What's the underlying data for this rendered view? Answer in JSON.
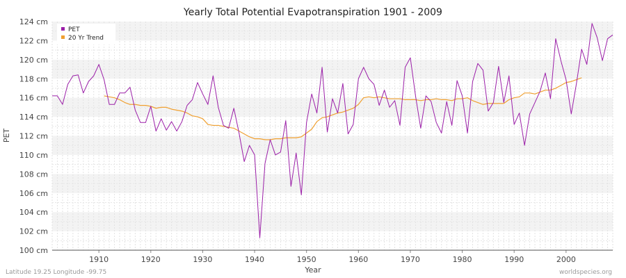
{
  "chart_data": {
    "type": "line",
    "title": "Yearly Total Potential Evapotranspiration 1901 - 2009",
    "xlabel": "Year",
    "ylabel": "PET",
    "xlim": [
      1901,
      2009
    ],
    "ylim": [
      100,
      124
    ],
    "x_ticks": [
      1910,
      1920,
      1930,
      1940,
      1950,
      1960,
      1970,
      1980,
      1990,
      2000
    ],
    "x_tick_labels": [
      "1910",
      "1920",
      "1930",
      "1940",
      "1950",
      "1960",
      "1970",
      "1980",
      "1990",
      "2000"
    ],
    "y_ticks": [
      100,
      102,
      104,
      106,
      108,
      110,
      112,
      114,
      116,
      118,
      120,
      122,
      124
    ],
    "y_tick_labels": [
      "100 cm",
      "102 cm",
      "104 cm",
      "106 cm",
      "108 cm",
      "110 cm",
      "112 cm",
      "114 cm",
      "116 cm",
      "118 cm",
      "120 cm",
      "122 cm",
      "124 cm"
    ],
    "grid": true,
    "legend_position": "top-left",
    "series": [
      {
        "name": "PET",
        "color": "#9b1fa8",
        "x_start": 1901,
        "values": [
          116.2,
          116.2,
          115.3,
          117.4,
          118.3,
          118.4,
          116.5,
          117.7,
          118.3,
          119.5,
          117.9,
          115.3,
          115.3,
          116.5,
          116.5,
          117.1,
          114.7,
          113.4,
          113.4,
          115.1,
          112.5,
          113.8,
          112.6,
          113.5,
          112.5,
          113.5,
          115.2,
          115.8,
          117.6,
          116.4,
          115.3,
          118.3,
          115.0,
          113.1,
          112.8,
          114.9,
          112.3,
          109.3,
          111.0,
          110.0,
          101.3,
          109.1,
          111.6,
          110.0,
          110.3,
          113.6,
          106.7,
          110.2,
          105.8,
          113.4,
          116.4,
          114.4,
          119.2,
          112.4,
          115.9,
          114.4,
          117.5,
          112.2,
          113.2,
          118.0,
          119.2,
          118.0,
          117.4,
          115.2,
          116.8,
          115.0,
          115.7,
          113.1,
          119.2,
          120.2,
          116.2,
          112.8,
          116.2,
          115.6,
          113.4,
          112.3,
          115.6,
          113.1,
          117.8,
          116.2,
          112.3,
          117.7,
          119.6,
          118.9,
          114.6,
          115.5,
          119.3,
          115.5,
          118.3,
          113.2,
          114.4,
          111.0,
          114.3,
          115.5,
          116.7,
          118.6,
          115.9,
          122.2,
          119.9,
          117.9,
          114.3,
          117.5,
          121.1,
          119.5,
          123.8,
          122.3,
          119.9,
          122.2,
          122.6
        ]
      },
      {
        "name": "20 Yr Trend",
        "color": "#f0a030",
        "x_start": 1911,
        "values": [
          116.2,
          116.1,
          116.0,
          115.8,
          115.5,
          115.3,
          115.3,
          115.2,
          115.2,
          115.1,
          114.9,
          115.0,
          115.0,
          114.8,
          114.7,
          114.6,
          114.4,
          114.1,
          114.0,
          113.8,
          113.2,
          113.1,
          113.1,
          113.0,
          112.9,
          112.8,
          112.5,
          112.2,
          111.9,
          111.7,
          111.7,
          111.6,
          111.6,
          111.7,
          111.7,
          111.8,
          111.8,
          111.8,
          111.9,
          112.3,
          112.7,
          113.5,
          113.9,
          114.0,
          114.2,
          114.4,
          114.5,
          114.7,
          114.9,
          115.3,
          116.0,
          116.1,
          116.0,
          116.1,
          116.0,
          115.9,
          115.9,
          115.9,
          115.8,
          115.8,
          115.8,
          115.7,
          115.8,
          115.8,
          115.9,
          115.8,
          115.8,
          115.7,
          115.9,
          115.9,
          116.0,
          115.7,
          115.5,
          115.3,
          115.4,
          115.4,
          115.4,
          115.4,
          115.8,
          116.0,
          116.1,
          116.5,
          116.5,
          116.4,
          116.6,
          116.8,
          116.8,
          117.0,
          117.3,
          117.6,
          117.7,
          117.9,
          118.1
        ]
      }
    ]
  },
  "footer": {
    "left": "Latitude 19.25 Longitude -99.75",
    "right": "worldspecies.org"
  }
}
